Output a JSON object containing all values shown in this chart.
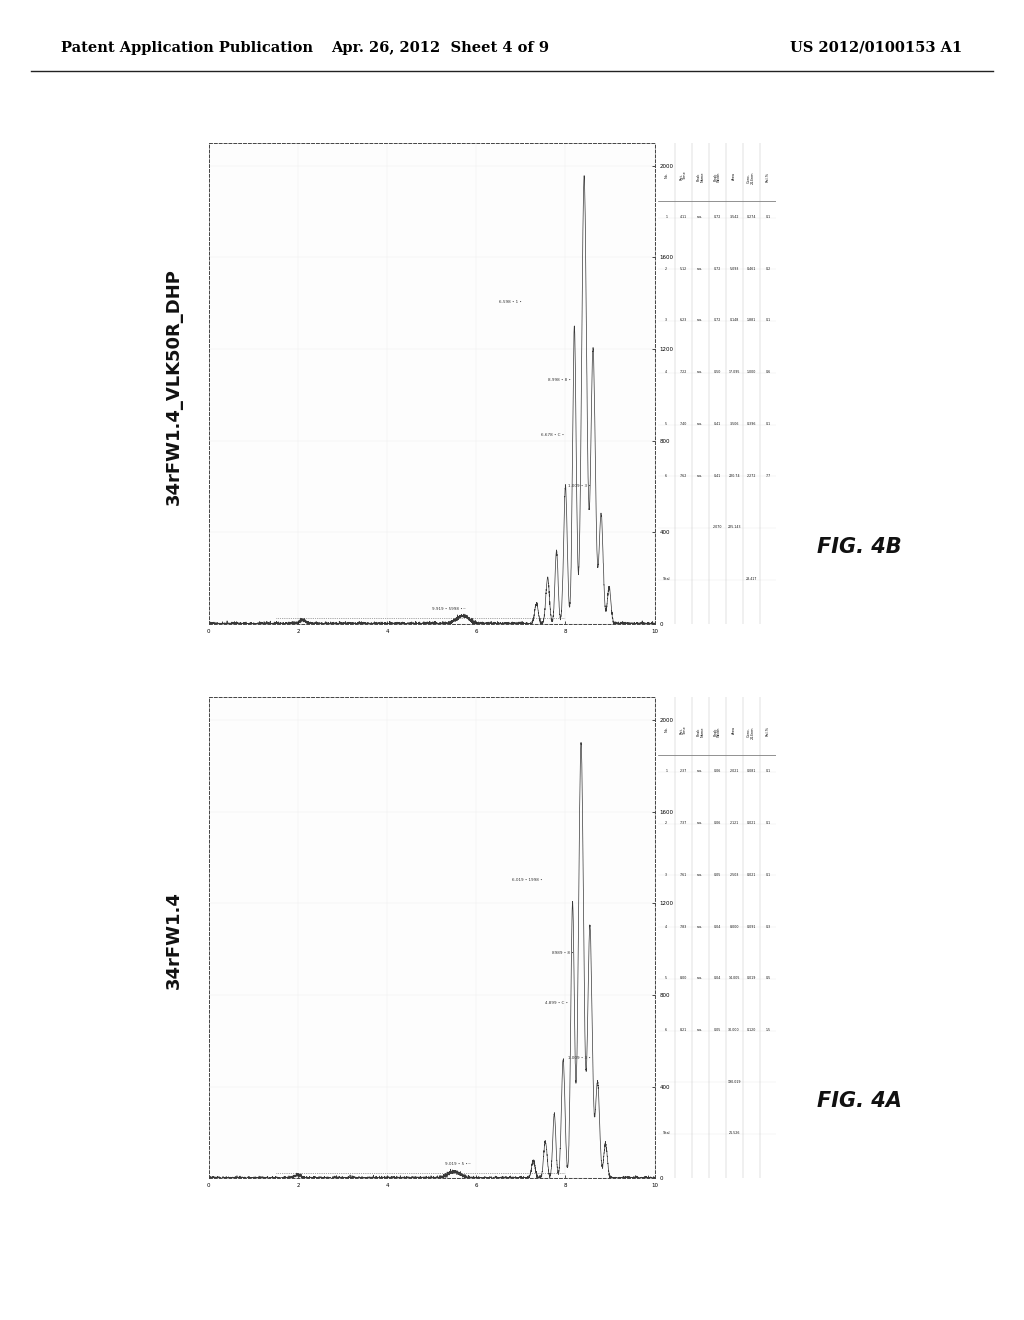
{
  "bg_color": "#ffffff",
  "header_left": "Patent Application Publication",
  "header_center": "Apr. 26, 2012  Sheet 4 of 9",
  "header_right": "US 2012/0100153 A1",
  "header_fontsize": 10.5,
  "fig4a_label": "34rFW1.4",
  "fig4b_label": "34rFW1.4_VLK50R_DHP",
  "fig4a_caption": "FIG. 4A",
  "fig4b_caption": "FIG. 4B",
  "label_fontsize": 13,
  "caption_fontsize": 15,
  "panel_outer_color": "#cccccc",
  "chrom_bg": "#ffffff",
  "table_bg": "#ffffff"
}
